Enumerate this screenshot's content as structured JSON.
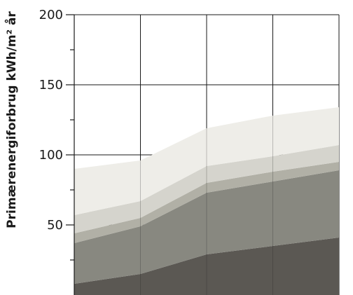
{
  "chart_data": {
    "type": "area",
    "stacked": true,
    "ylabel": "Primærenergiforbrug  kWh/m² år",
    "ylim": [
      0,
      200
    ],
    "y_ticks": [
      50,
      100,
      150,
      200
    ],
    "y_tick_labels": [
      "50",
      "100",
      "150",
      "200"
    ],
    "y_minor_ticks": [
      25,
      75,
      125,
      175
    ],
    "x_gridlines": 4,
    "grid": true,
    "legend": "none",
    "x": [
      0,
      1,
      2,
      3,
      4
    ],
    "series": [
      {
        "color": "#5b5853",
        "values": [
          8,
          15,
          29,
          35,
          41
        ]
      },
      {
        "color": "#888880",
        "values": [
          29,
          34,
          44,
          46,
          48
        ]
      },
      {
        "color": "#b1b0a6",
        "values": [
          7,
          6,
          7,
          7,
          6
        ]
      },
      {
        "color": "#d5d4cd",
        "values": [
          13,
          12,
          12,
          11,
          12
        ]
      },
      {
        "color": "#eeede8",
        "values": [
          33,
          29,
          27,
          29,
          27
        ]
      }
    ]
  }
}
